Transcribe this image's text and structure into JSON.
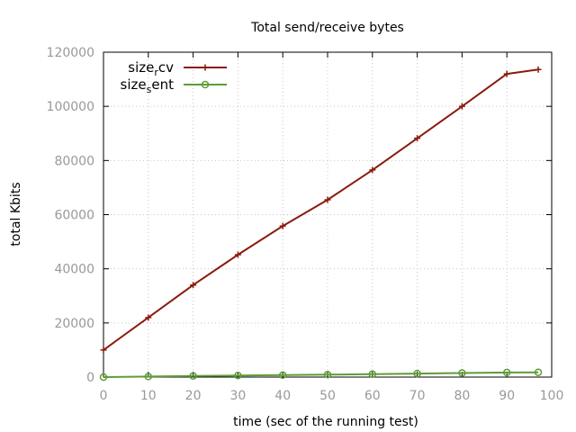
{
  "chart_data": {
    "type": "line",
    "title": "Total send/receive bytes",
    "xlabel": "time (sec of the running test)",
    "ylabel": "total Kbits",
    "xlim": [
      0,
      100
    ],
    "ylim": [
      0,
      120000
    ],
    "xticks": [
      0,
      10,
      20,
      30,
      40,
      50,
      60,
      70,
      80,
      90,
      100
    ],
    "yticks": [
      0,
      20000,
      40000,
      60000,
      80000,
      100000,
      120000
    ],
    "grid": true,
    "legend_position": "top-left",
    "series": [
      {
        "name": "size_rcv",
        "legend_base": "size",
        "legend_sub": "r",
        "legend_tail": "cv",
        "color": "#8b1a0e",
        "marker": "plus",
        "x": [
          0,
          10,
          20,
          30,
          40,
          50,
          60,
          70,
          80,
          90,
          97
        ],
        "y": [
          10000,
          22000,
          34000,
          45200,
          55800,
          65500,
          76500,
          88200,
          100000,
          112000,
          113600
        ]
      },
      {
        "name": "size_sent",
        "legend_base": "size",
        "legend_sub": "s",
        "legend_tail": "ent",
        "color": "#5e9c36",
        "marker": "circle",
        "x": [
          0,
          10,
          20,
          30,
          40,
          50,
          60,
          70,
          80,
          90,
          97
        ],
        "y": [
          0,
          200,
          400,
          600,
          750,
          900,
          1100,
          1300,
          1500,
          1700,
          1750
        ]
      }
    ]
  }
}
